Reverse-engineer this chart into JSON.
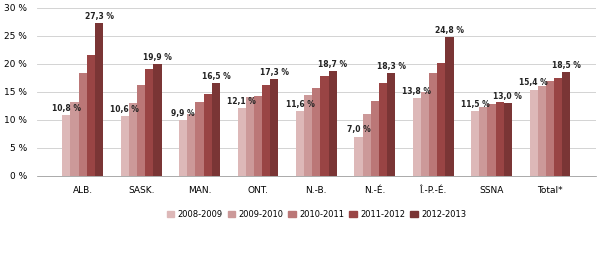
{
  "categories": [
    "ALB.",
    "SASK.",
    "MAN.",
    "ONT.",
    "N.-B.",
    "N.-É.",
    "Î.-P.-É.",
    "SSNA",
    "Total*"
  ],
  "series": {
    "2008-2009": [
      10.8,
      10.6,
      9.9,
      12.1,
      11.6,
      7.0,
      13.8,
      11.5,
      15.4
    ],
    "2009-2010": [
      13.2,
      13.0,
      11.1,
      14.0,
      14.5,
      11.0,
      15.0,
      12.2,
      16.0
    ],
    "2010-2011": [
      18.4,
      16.2,
      13.2,
      14.3,
      15.6,
      13.4,
      18.3,
      12.8,
      17.0
    ],
    "2011-2012": [
      21.5,
      19.0,
      14.6,
      16.2,
      17.9,
      16.5,
      20.2,
      13.2,
      17.5
    ],
    "2012-2013": [
      27.3,
      19.9,
      16.5,
      17.3,
      18.7,
      18.3,
      24.8,
      13.0,
      18.5
    ]
  },
  "colors": {
    "2008-2009": "#ddb8b8",
    "2009-2010": "#cc9999",
    "2010-2011": "#bb7777",
    "2011-2012": "#994444",
    "2012-2013": "#7a3535"
  },
  "legend_labels": [
    "2008-2009",
    "2009-2010",
    "2010-2011",
    "2011-2012",
    "2012-2013"
  ],
  "ylim": [
    0,
    30
  ],
  "yticks": [
    0,
    5,
    10,
    15,
    20,
    25,
    30
  ],
  "ytick_labels": [
    "0 %",
    "5 %",
    "10 %",
    "15 %",
    "20 %",
    "25 %",
    "30 %"
  ],
  "bar_width": 0.14,
  "background_color": "#ffffff",
  "map_color": "#dce8f0",
  "grid_color": "#cccccc",
  "label_fontsize": 5.5,
  "axis_fontsize": 6.5,
  "legend_fontsize": 6.0,
  "annotations_first": [
    10.8,
    10.6,
    9.9,
    12.1,
    11.6,
    7.0,
    13.8,
    11.5,
    15.4
  ],
  "annotations_last": [
    27.3,
    19.9,
    16.5,
    17.3,
    18.7,
    18.3,
    24.8,
    13.0,
    18.5
  ]
}
